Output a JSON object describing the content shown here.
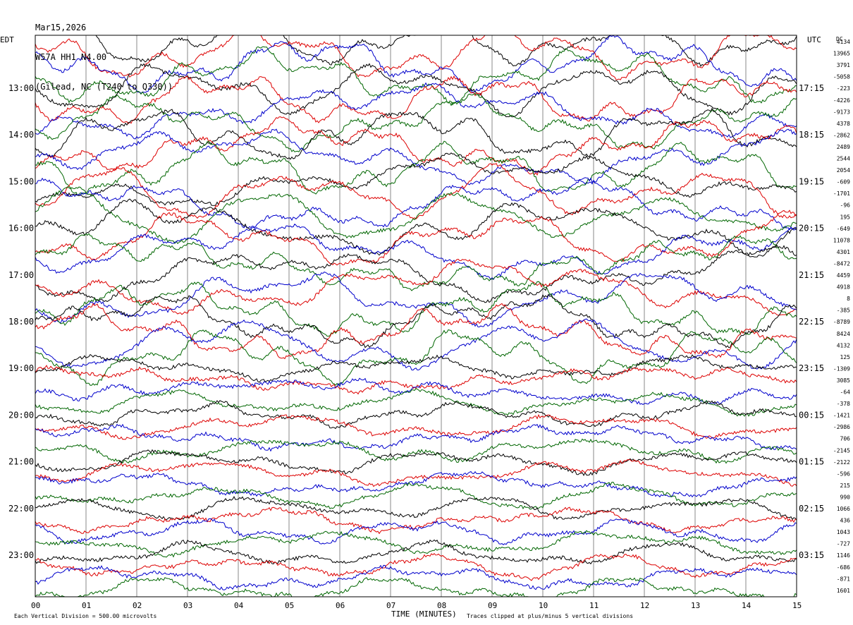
{
  "header": {
    "date": "Mar15,2026",
    "station": "W57A HH1 N4.00",
    "location": "(Gilead, NC (T240 to Q330))"
  },
  "left_tz": "EDT",
  "right_tz": "UTC",
  "dc_header": "DC",
  "left_hour_labels": [
    "13:00",
    "14:00",
    "15:00",
    "16:00",
    "17:00",
    "18:00",
    "19:00",
    "20:00",
    "21:00",
    "22:00",
    "23:00"
  ],
  "right_hour_labels": [
    "17:15",
    "18:15",
    "19:15",
    "20:15",
    "21:15",
    "22:15",
    "23:15",
    "00:15",
    "01:15",
    "02:15",
    "03:15"
  ],
  "dc_offsets": [
    "4134",
    "13965",
    "3791",
    "-5058",
    "-223",
    "-4226",
    "-9173",
    "4378",
    "-2862",
    "2489",
    "2544",
    "2054",
    "-609",
    "-1701",
    "-96",
    "195",
    "-649",
    "11078",
    "4301",
    "-8472",
    "4459",
    "4918",
    "8",
    "-385",
    "-8789",
    "8424",
    "4132",
    "125",
    "-1309",
    "3085",
    "-64",
    "-378",
    "-1421",
    "-2986",
    "706",
    "-2145",
    "-2122",
    "-596",
    "215",
    "990",
    "1066",
    "436",
    "1043",
    "-727",
    "1146",
    "-686",
    "-871",
    "1601"
  ],
  "footer": {
    "x_ticks": [
      "00",
      "01",
      "02",
      "03",
      "04",
      "05",
      "06",
      "07",
      "08",
      "09",
      "10",
      "11",
      "12",
      "13",
      "14",
      "15"
    ],
    "x_title": "TIME (MINUTES)",
    "division_note": "Each Vertical Division = 500.00 microvolts",
    "clip_note": "Traces clipped at plus/minus 5 vertical divisions"
  },
  "chart_data": {
    "type": "line",
    "title": "W57A HH1 N4.00",
    "xlabel": "TIME (MINUTES)",
    "xlim": [
      0,
      15
    ],
    "trace_count": 48,
    "trace_interval_minutes": 15,
    "first_trace_edt": "12:15",
    "color_cycle": [
      "#000000",
      "#dd0000",
      "#0000cc",
      "#006600"
    ],
    "vertical_division_microvolts": 500.0,
    "clip_divisions": 5
  }
}
